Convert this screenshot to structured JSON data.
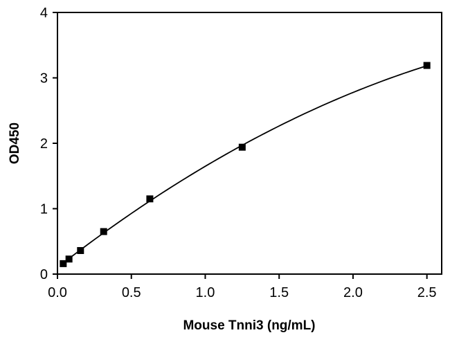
{
  "chart_data": {
    "type": "scatter",
    "title": "",
    "xlabel": "Mouse Tnni3 (ng/mL)",
    "ylabel": "OD450",
    "xlim": [
      0,
      2.6
    ],
    "ylim": [
      0,
      4
    ],
    "x_ticks": [
      "0.0",
      "0.5",
      "1.0",
      "1.5",
      "2.0",
      "2.5"
    ],
    "y_ticks": [
      "0",
      "1",
      "2",
      "3",
      "4"
    ],
    "grid": false,
    "series": [
      {
        "marker": "square",
        "fit_line": true,
        "color": "#000000",
        "x": [
          0.039,
          0.078,
          0.156,
          0.3125,
          0.625,
          1.25,
          2.5
        ],
        "y": [
          0.16,
          0.23,
          0.36,
          0.65,
          1.15,
          1.94,
          3.19
        ]
      }
    ]
  }
}
